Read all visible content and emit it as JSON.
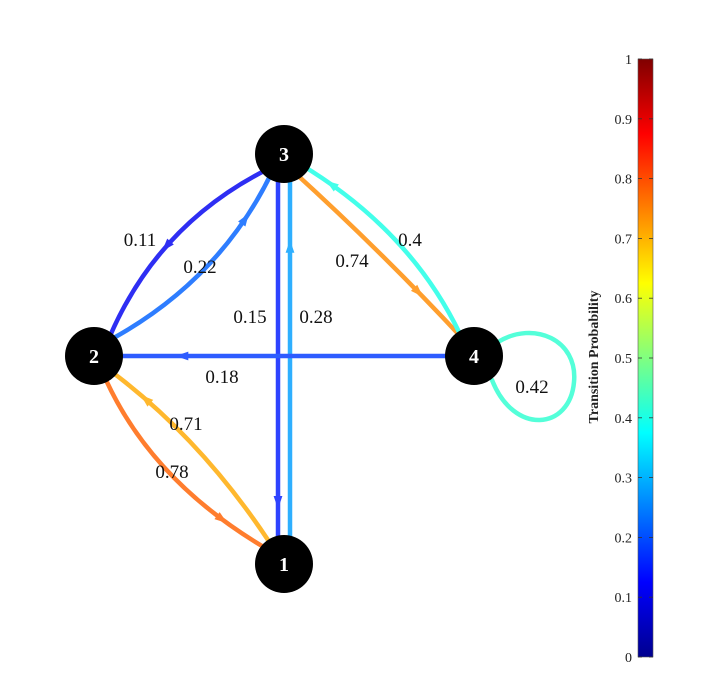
{
  "graph": {
    "nodes": [
      {
        "id": "1",
        "label": "1"
      },
      {
        "id": "2",
        "label": "2"
      },
      {
        "id": "3",
        "label": "3"
      },
      {
        "id": "4",
        "label": "4"
      }
    ],
    "edges": [
      {
        "from": "3",
        "to": "2",
        "value": 0.11,
        "label": "0.11"
      },
      {
        "from": "2",
        "to": "3",
        "value": 0.22,
        "label": "0.22"
      },
      {
        "from": "3",
        "to": "1",
        "value": 0.15,
        "label": "0.15"
      },
      {
        "from": "1",
        "to": "3",
        "value": 0.28,
        "label": "0.28"
      },
      {
        "from": "3",
        "to": "4",
        "value": 0.74,
        "label": "0.74"
      },
      {
        "from": "4",
        "to": "3",
        "value": 0.4,
        "label": "0.4"
      },
      {
        "from": "4",
        "to": "2",
        "value": 0.18,
        "label": "0.18"
      },
      {
        "from": "1",
        "to": "2",
        "value": 0.71,
        "label": "0.71"
      },
      {
        "from": "2",
        "to": "1",
        "value": 0.78,
        "label": "0.78"
      },
      {
        "from": "4",
        "to": "4",
        "value": 0.42,
        "label": "0.42"
      }
    ]
  },
  "colorbar": {
    "title": "Transition Probability",
    "colormap": "jet",
    "range": [
      0,
      1
    ],
    "ticks": [
      "0",
      "0.1",
      "0.2",
      "0.3",
      "0.4",
      "0.5",
      "0.6",
      "0.7",
      "0.8",
      "0.9",
      "1"
    ]
  }
}
